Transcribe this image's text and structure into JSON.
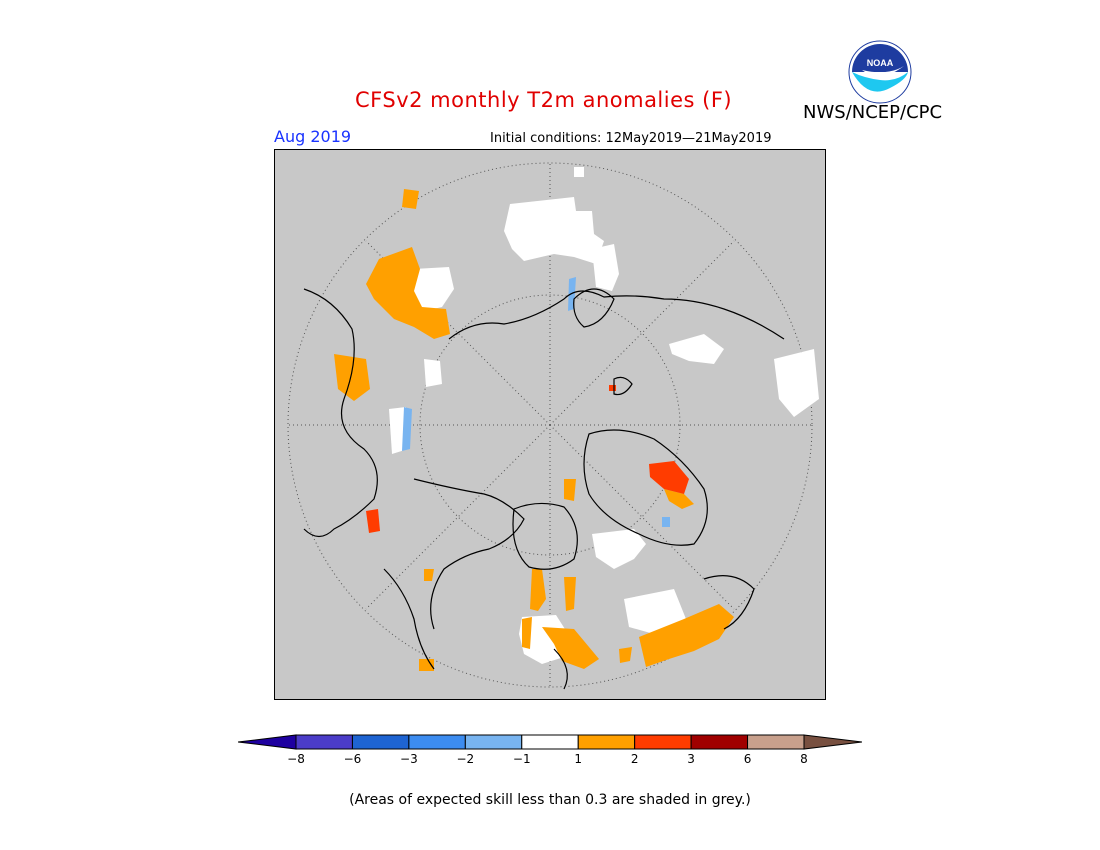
{
  "header": {
    "title": "CFSv2 monthly T2m anomalies (F)",
    "agency": "NWS/NCEP/CPC",
    "month": "Aug 2019",
    "initial_conditions": "Initial conditions: 12May2019—21May2019"
  },
  "logo": {
    "icon": "noaa-logo-icon",
    "text": "NOAA"
  },
  "map": {
    "projection": "north-polar-stereographic",
    "background_color": "#c8c8c8",
    "coastline_color": "#000000",
    "grid": "dotted"
  },
  "legend": {
    "colors": [
      "#1e00a0",
      "#4b3cc8",
      "#1e64d2",
      "#3c8cf0",
      "#78b4f0",
      "#ffffff",
      "#ffa000",
      "#ff3c00",
      "#a00000",
      "#c8a08c",
      "#785040"
    ],
    "tick_labels": [
      "−8",
      "−6",
      "−3",
      "−2",
      "−1",
      "1",
      "2",
      "3",
      "6",
      "8"
    ]
  },
  "footnote": "(Areas of expected skill less than 0.3 are shaded in grey.)"
}
